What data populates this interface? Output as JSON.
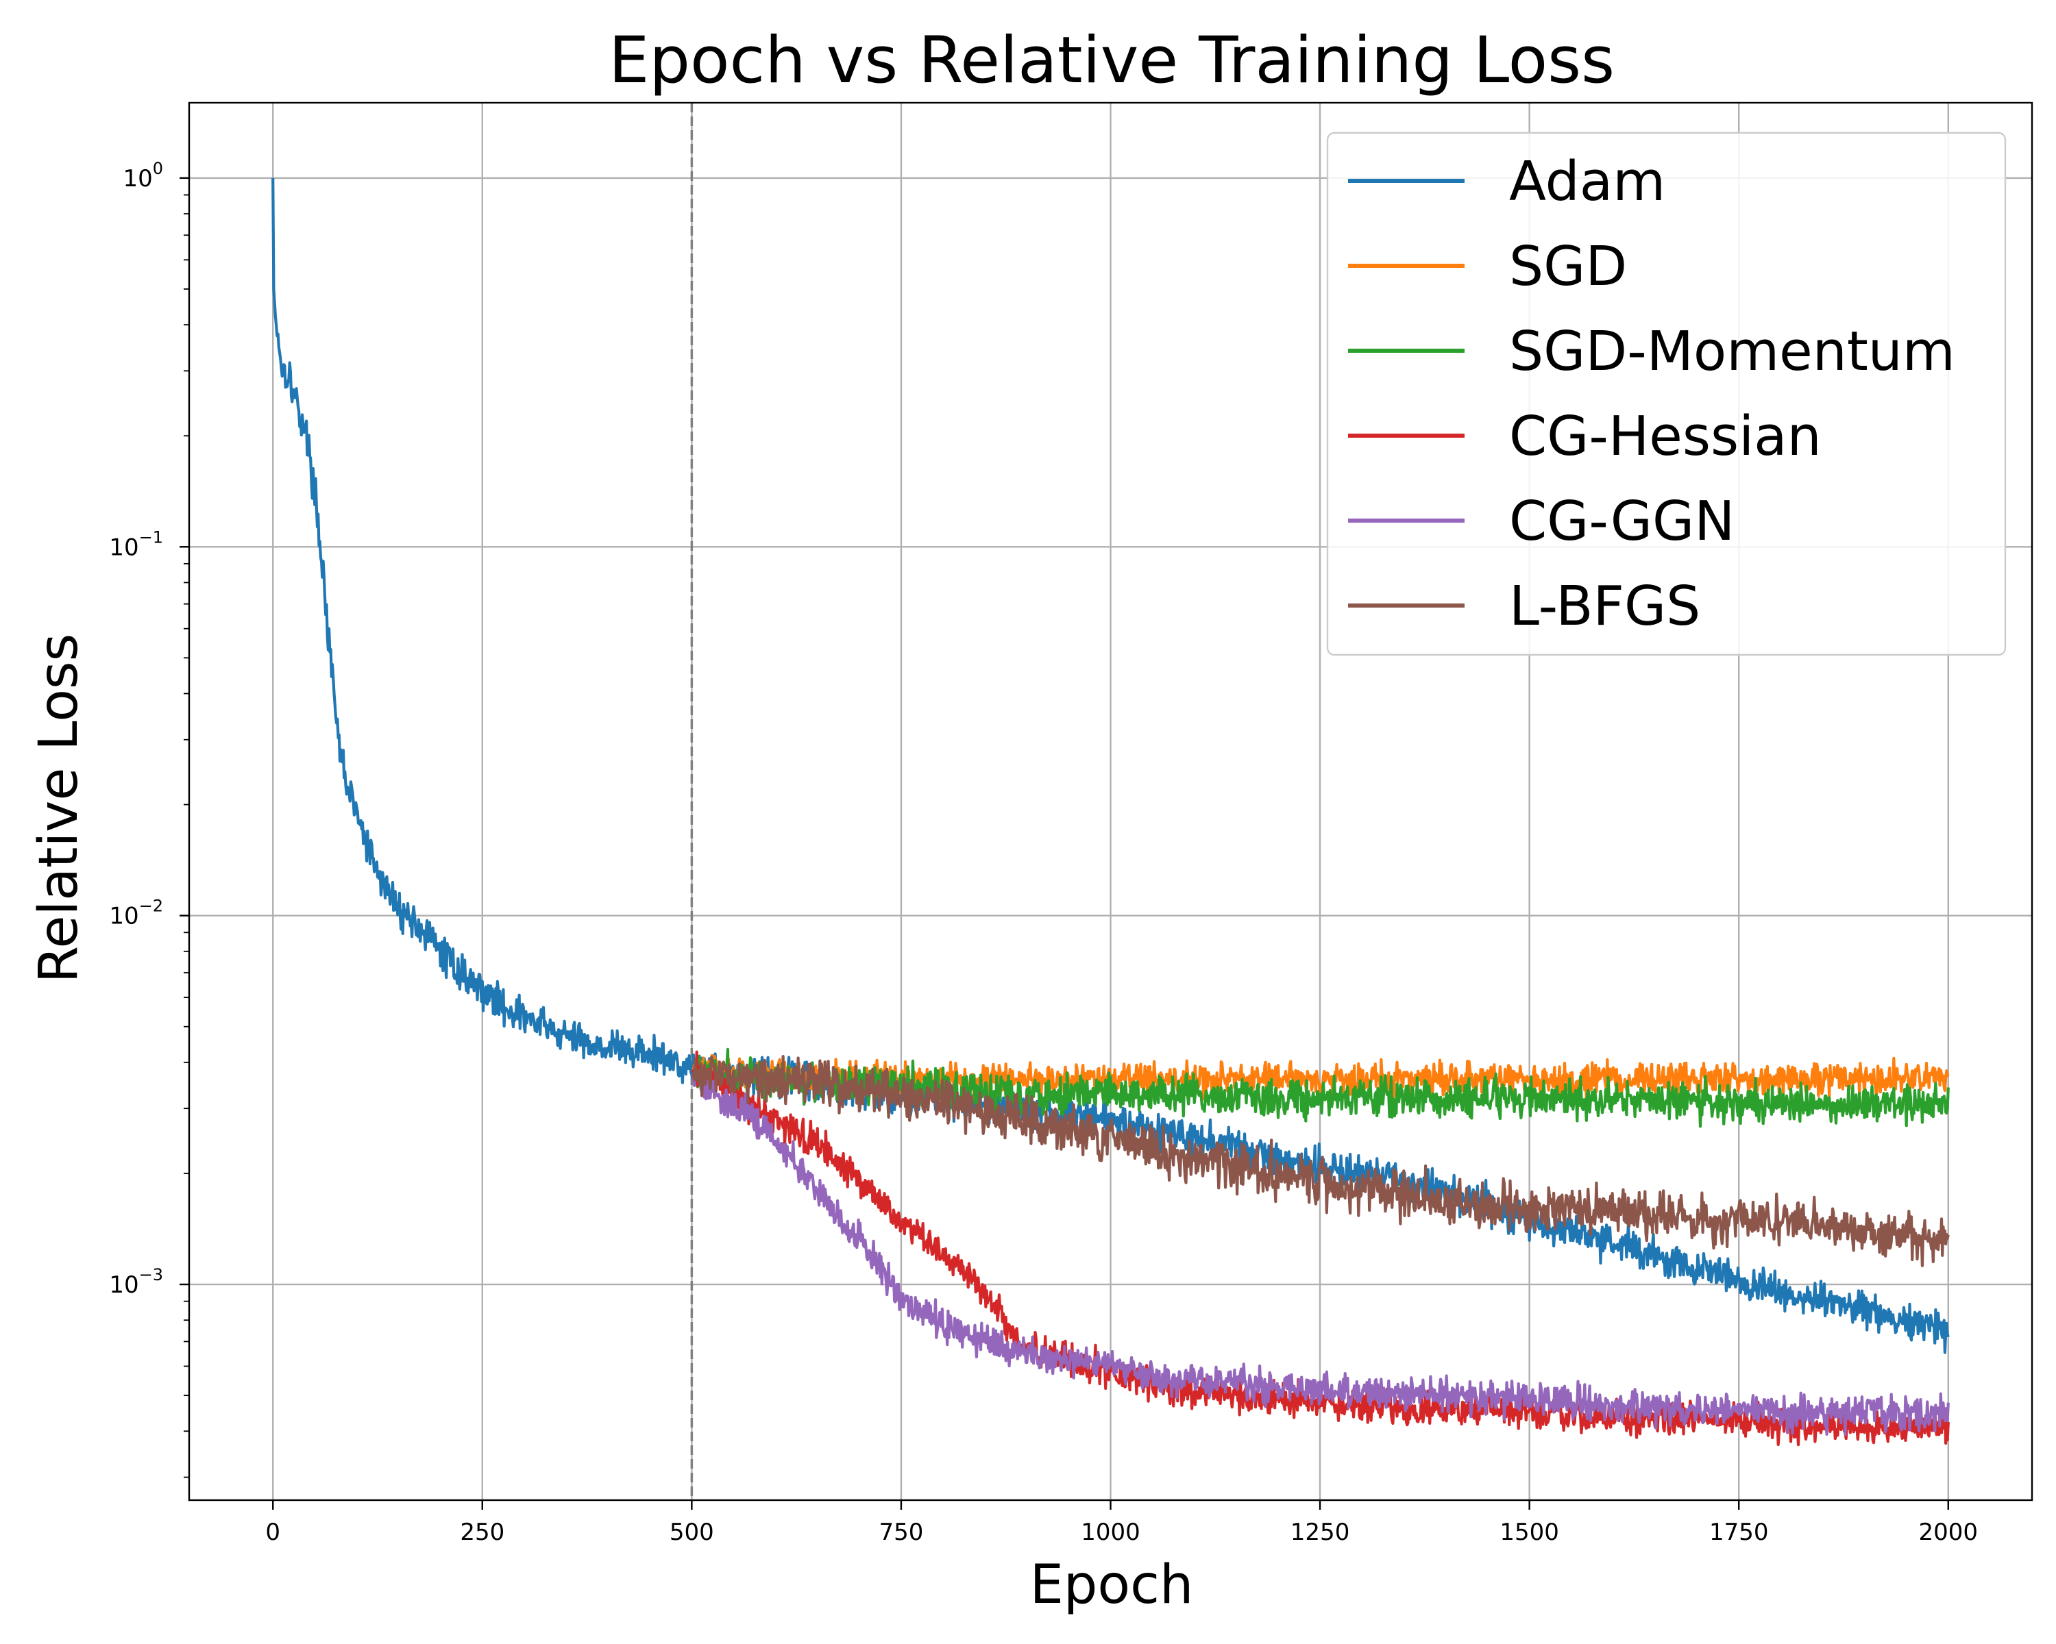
{
  "chart_data": {
    "type": "line",
    "title": "Epoch vs Relative Training Loss",
    "xlabel": "Epoch",
    "ylabel": "Relative Loss",
    "yscale": "log",
    "xlim": [
      -100,
      2100
    ],
    "ylim": [
      0.00026,
      1.6
    ],
    "grid": true,
    "legend_position": "top-right",
    "x_ticks": [
      0,
      250,
      500,
      750,
      1000,
      1250,
      1500,
      1750,
      2000
    ],
    "x_tick_labels": [
      "0",
      "250",
      "500",
      "750",
      "1000",
      "1250",
      "1500",
      "1750",
      "2000"
    ],
    "y_ticks": [
      {
        "value": 1,
        "base": "10",
        "exp": "0"
      },
      {
        "value": 0.1,
        "base": "10",
        "exp": "−1"
      },
      {
        "value": 0.01,
        "base": "10",
        "exp": "−2"
      },
      {
        "value": 0.001,
        "base": "10",
        "exp": "−3"
      }
    ],
    "vline": {
      "x": 500,
      "color": "#808080",
      "style": "dashed"
    },
    "series": [
      {
        "name": "Adam",
        "color": "#1f77b4",
        "noise": 0.055,
        "points": [
          [
            0,
            1.0
          ],
          [
            1,
            0.5
          ],
          [
            3,
            0.42
          ],
          [
            6,
            0.38
          ],
          [
            10,
            0.31
          ],
          [
            15,
            0.3
          ],
          [
            20,
            0.29
          ],
          [
            25,
            0.26
          ],
          [
            30,
            0.24
          ],
          [
            40,
            0.2
          ],
          [
            45,
            0.17
          ],
          [
            50,
            0.14
          ],
          [
            55,
            0.11
          ],
          [
            60,
            0.085
          ],
          [
            65,
            0.062
          ],
          [
            70,
            0.045
          ],
          [
            75,
            0.035
          ],
          [
            80,
            0.028
          ],
          [
            90,
            0.022
          ],
          [
            100,
            0.019
          ],
          [
            110,
            0.016
          ],
          [
            125,
            0.013
          ],
          [
            150,
            0.0105
          ],
          [
            175,
            0.0093
          ],
          [
            200,
            0.008
          ],
          [
            225,
            0.007
          ],
          [
            250,
            0.0063
          ],
          [
            275,
            0.0057
          ],
          [
            300,
            0.0053
          ],
          [
            325,
            0.005
          ],
          [
            350,
            0.0047
          ],
          [
            400,
            0.0044
          ],
          [
            450,
            0.0042
          ],
          [
            500,
            0.0039
          ],
          [
            600,
            0.0036
          ],
          [
            700,
            0.0034
          ],
          [
            800,
            0.0032
          ],
          [
            900,
            0.003
          ],
          [
            1000,
            0.0028
          ],
          [
            1100,
            0.0025
          ],
          [
            1200,
            0.0022
          ],
          [
            1300,
            0.002
          ],
          [
            1400,
            0.0018
          ],
          [
            1500,
            0.0015
          ],
          [
            1600,
            0.0013
          ],
          [
            1700,
            0.0011
          ],
          [
            1800,
            0.00095
          ],
          [
            1900,
            0.00085
          ],
          [
            2000,
            0.00075
          ]
        ]
      },
      {
        "name": "SGD",
        "color": "#ff7f0e",
        "noise": 0.05,
        "points": [
          [
            500,
            0.0038
          ],
          [
            600,
            0.0037
          ],
          [
            800,
            0.0036
          ],
          [
            1000,
            0.0036
          ],
          [
            1200,
            0.0036
          ],
          [
            1400,
            0.0036
          ],
          [
            1600,
            0.0036
          ],
          [
            1800,
            0.0036
          ],
          [
            2000,
            0.0036
          ]
        ]
      },
      {
        "name": "SGD-Momentum",
        "color": "#2ca02c",
        "noise": 0.06,
        "points": [
          [
            500,
            0.0037
          ],
          [
            600,
            0.0036
          ],
          [
            700,
            0.0035
          ],
          [
            800,
            0.0034
          ],
          [
            900,
            0.0033
          ],
          [
            1000,
            0.0033
          ],
          [
            1200,
            0.0032
          ],
          [
            1500,
            0.0032
          ],
          [
            1800,
            0.0031
          ],
          [
            2000,
            0.0031
          ]
        ]
      },
      {
        "name": "CG-Hessian",
        "color": "#d62728",
        "noise": 0.05,
        "points": [
          [
            500,
            0.0038
          ],
          [
            550,
            0.0033
          ],
          [
            600,
            0.0028
          ],
          [
            650,
            0.0024
          ],
          [
            700,
            0.0019
          ],
          [
            750,
            0.0015
          ],
          [
            800,
            0.0012
          ],
          [
            850,
            0.00095
          ],
          [
            880,
            0.00075
          ],
          [
            900,
            0.00068
          ],
          [
            950,
            0.00062
          ],
          [
            1000,
            0.00058
          ],
          [
            1050,
            0.00054
          ],
          [
            1100,
            0.00051
          ],
          [
            1200,
            0.00049
          ],
          [
            1300,
            0.00047
          ],
          [
            1400,
            0.00046
          ],
          [
            1500,
            0.00045
          ],
          [
            1600,
            0.00044
          ],
          [
            1700,
            0.00043
          ],
          [
            1800,
            0.00042
          ],
          [
            1900,
            0.00041
          ],
          [
            2000,
            0.00041
          ]
        ]
      },
      {
        "name": "CG-GGN",
        "color": "#9467bd",
        "noise": 0.05,
        "points": [
          [
            500,
            0.0037
          ],
          [
            530,
            0.0033
          ],
          [
            560,
            0.003
          ],
          [
            600,
            0.0025
          ],
          [
            650,
            0.0018
          ],
          [
            700,
            0.0013
          ],
          [
            740,
            0.001
          ],
          [
            760,
            0.00088
          ],
          [
            800,
            0.00078
          ],
          [
            850,
            0.0007
          ],
          [
            900,
            0.00065
          ],
          [
            950,
            0.00062
          ],
          [
            1000,
            0.0006
          ],
          [
            1050,
            0.00057
          ],
          [
            1100,
            0.00055
          ],
          [
            1200,
            0.00053
          ],
          [
            1300,
            0.00051
          ],
          [
            1400,
            0.0005
          ],
          [
            1500,
            0.00049
          ],
          [
            1600,
            0.00047
          ],
          [
            1700,
            0.00046
          ],
          [
            1800,
            0.00045
          ],
          [
            1900,
            0.00045
          ],
          [
            2000,
            0.00044
          ]
        ]
      },
      {
        "name": "L-BFGS",
        "color": "#8c564b",
        "noise": 0.07,
        "points": [
          [
            500,
            0.0037
          ],
          [
            600,
            0.0036
          ],
          [
            700,
            0.0034
          ],
          [
            800,
            0.0031
          ],
          [
            900,
            0.0028
          ],
          [
            1000,
            0.0025
          ],
          [
            1100,
            0.0022
          ],
          [
            1200,
            0.002
          ],
          [
            1300,
            0.0018
          ],
          [
            1400,
            0.0017
          ],
          [
            1500,
            0.0016
          ],
          [
            1600,
            0.0016
          ],
          [
            1700,
            0.0015
          ],
          [
            1800,
            0.0015
          ],
          [
            1900,
            0.0014
          ],
          [
            2000,
            0.0013
          ]
        ]
      }
    ]
  }
}
